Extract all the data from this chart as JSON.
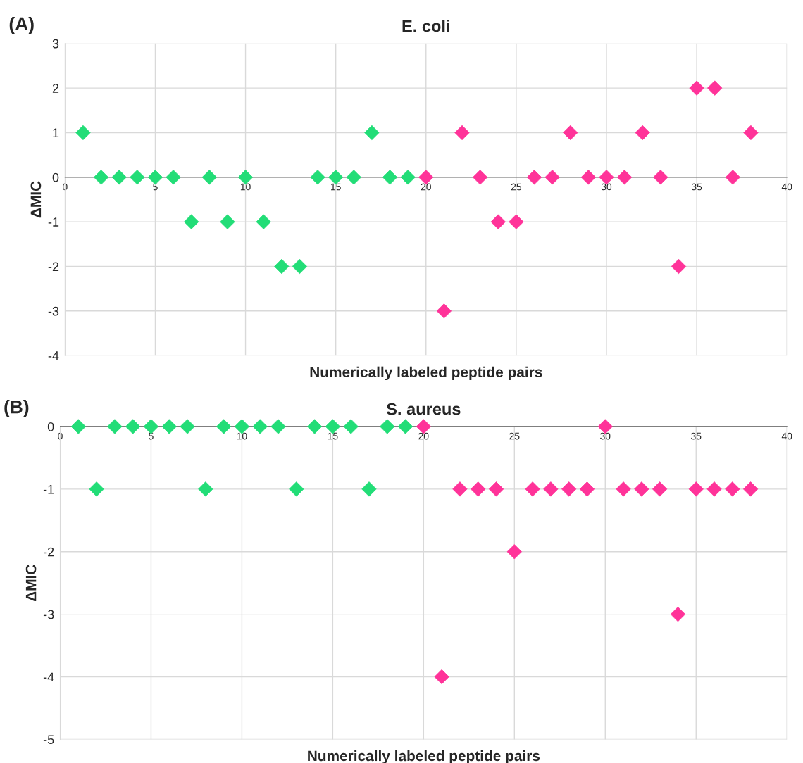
{
  "chart_data": [
    {
      "type": "scatter",
      "title": "E. coli",
      "xlabel": "Numerically labeled peptide pairs",
      "ylabel": "ΔMIC",
      "annotations": [
        "(A)"
      ],
      "xlim": [
        0,
        40
      ],
      "xticks": [
        0,
        5,
        10,
        15,
        20,
        25,
        30,
        35,
        40
      ],
      "ylim": [
        -4,
        3
      ],
      "yticks": [
        -4,
        -3,
        -2,
        -1,
        0,
        1,
        2,
        3
      ],
      "grid": true,
      "marker": "diamond",
      "legend": false,
      "series": [
        {
          "color": "#22dd77",
          "x": [
            1,
            2,
            3,
            4,
            5,
            6,
            7,
            8,
            9,
            10,
            11,
            12,
            13,
            14,
            15,
            16,
            17,
            18,
            19
          ],
          "values": [
            1,
            0,
            0,
            0,
            0,
            0,
            -1,
            0,
            -1,
            0,
            -1,
            -2,
            -2,
            0,
            0,
            0,
            1,
            0,
            0
          ]
        },
        {
          "color": "#ff3399",
          "x": [
            20,
            21,
            22,
            23,
            24,
            25,
            26,
            27,
            28,
            29,
            30,
            31,
            32,
            33,
            34,
            35,
            36,
            37,
            38
          ],
          "values": [
            0,
            -3,
            1,
            0,
            -1,
            -1,
            0,
            0,
            1,
            0,
            0,
            0,
            1,
            0,
            -2,
            2,
            2,
            0,
            1
          ]
        }
      ]
    },
    {
      "type": "scatter",
      "title": "S. aureus",
      "xlabel": "Numerically labeled peptide pairs",
      "ylabel": "ΔMIC",
      "annotations": [
        "(B)"
      ],
      "xlim": [
        0,
        40
      ],
      "xticks": [
        0,
        5,
        10,
        15,
        20,
        25,
        30,
        35,
        40
      ],
      "ylim": [
        -5,
        0
      ],
      "yticks": [
        -5,
        -4,
        -3,
        -2,
        -1,
        0
      ],
      "grid": true,
      "marker": "diamond",
      "legend": false,
      "series": [
        {
          "color": "#22dd77",
          "x": [
            1,
            2,
            3,
            4,
            5,
            6,
            7,
            8,
            9,
            10,
            11,
            12,
            13,
            14,
            15,
            16,
            17,
            18,
            19
          ],
          "values": [
            0,
            -1,
            0,
            0,
            0,
            0,
            0,
            -1,
            0,
            0,
            0,
            0,
            -1,
            0,
            0,
            0,
            -1,
            0,
            0
          ]
        },
        {
          "color": "#ff3399",
          "x": [
            20,
            21,
            22,
            23,
            24,
            25,
            26,
            27,
            28,
            29,
            30,
            31,
            32,
            33,
            34,
            35,
            36,
            37,
            38
          ],
          "values": [
            0,
            -4,
            -1,
            -1,
            -1,
            -2,
            -1,
            -1,
            -1,
            -1,
            0,
            -1,
            -1,
            -1,
            -3,
            -1,
            -1,
            -1,
            -1
          ]
        }
      ]
    }
  ]
}
